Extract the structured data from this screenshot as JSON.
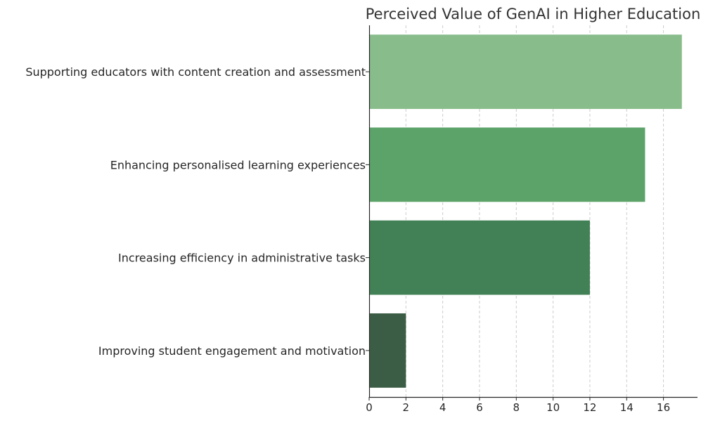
{
  "chart_data": {
    "type": "bar",
    "orientation": "horizontal",
    "title": "Perceived Value of GenAI in Higher Education",
    "xlabel": "",
    "ylabel": "",
    "categories": [
      "Supporting educators with content creation and assessment",
      "Enhancing personalised learning experiences",
      "Increasing efficiency in administrative tasks",
      "Improving student engagement and motivation"
    ],
    "values": [
      17,
      15,
      12,
      2
    ],
    "bar_colors": [
      "#88bc8b",
      "#5ca36a",
      "#428155",
      "#3c5d45"
    ],
    "xlim": [
      0,
      17.85
    ],
    "xticks": [
      0,
      2,
      4,
      6,
      8,
      10,
      12,
      14,
      16
    ],
    "grid": "vertical dashed"
  }
}
